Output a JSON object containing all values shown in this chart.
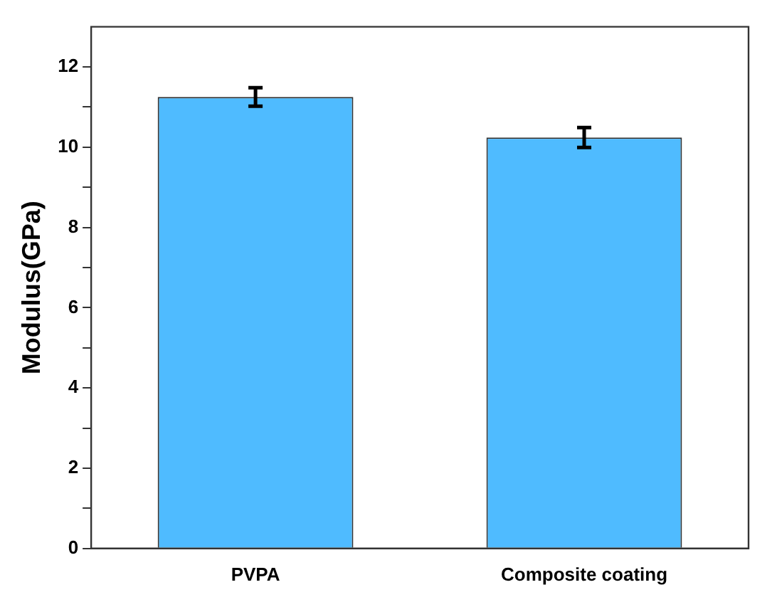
{
  "chart_data": {
    "type": "bar",
    "ylabel": "Modulus(GPa)",
    "categories": [
      "PVPA",
      "Composite coating"
    ],
    "values": [
      11.25,
      10.24
    ],
    "errors": [
      0.23,
      0.25
    ],
    "color": "#4fbbff",
    "ylim": [
      0,
      13
    ],
    "yticks": [
      0,
      {
        "value": 1,
        "label": null
      },
      2,
      {
        "value": 3,
        "label": null
      },
      4,
      {
        "value": 5,
        "label": null
      },
      6,
      {
        "value": 7,
        "label": null
      },
      8,
      {
        "value": 9,
        "label": null
      },
      10,
      {
        "value": 11,
        "label": null
      },
      12
    ],
    "grid": false,
    "legend": false
  }
}
